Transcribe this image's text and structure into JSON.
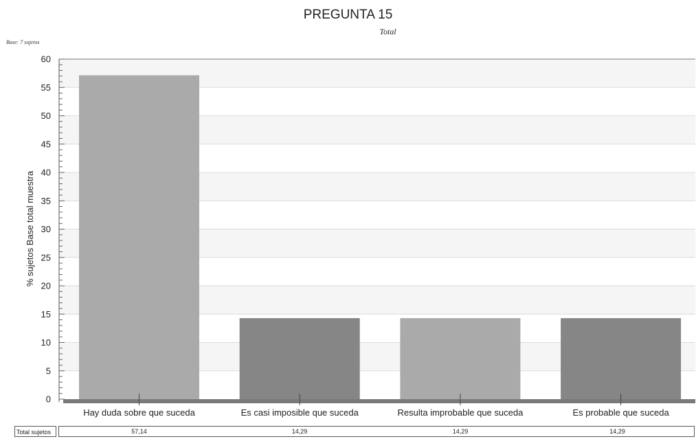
{
  "chart_data": {
    "type": "bar",
    "title": "PREGUNTA 15",
    "subtitle": "Total",
    "base_note": "Base: 7 sujetos",
    "ylabel": "% sujetos Base total muestra",
    "xlabel": "",
    "ylim": [
      0,
      60
    ],
    "yticks": [
      "0",
      "5",
      "10",
      "15",
      "20",
      "25",
      "30",
      "35",
      "40",
      "45",
      "50",
      "55",
      "60"
    ],
    "categories": [
      "Hay duda sobre que suceda",
      "Es casi imposible que suceda",
      "Resulta improbable que suceda",
      "Es probable que suceda"
    ],
    "values": [
      57.14,
      14.29,
      14.29,
      14.29
    ],
    "bar_colors": [
      "#aaaaaa",
      "#868686",
      "#aaaaaa",
      "#868686"
    ],
    "grid": true,
    "legend": "none"
  },
  "table": {
    "row_label": "Total sujetos",
    "values": [
      "57,14",
      "14,29",
      "14,29",
      "14,29"
    ]
  }
}
